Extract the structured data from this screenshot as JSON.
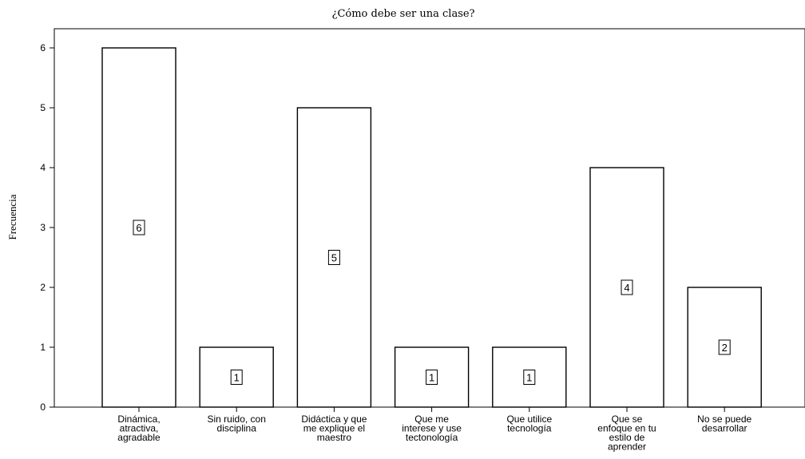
{
  "chart_data": {
    "type": "bar",
    "title": "¿Cómo debe ser una clase?",
    "xlabel": "",
    "ylabel": "Frecuencia",
    "categories": [
      [
        "Dinámica,",
        "atractiva,",
        "agradable"
      ],
      [
        "Sin ruido, con",
        "disciplina"
      ],
      [
        "Didáctica y que",
        "me explique el",
        "maestro"
      ],
      [
        "Que me",
        "interese y use",
        "tectonología"
      ],
      [
        "Que utilice",
        "tecnología"
      ],
      [
        "Que se",
        "enfoque en tu",
        "estilo de",
        "aprender"
      ],
      [
        "No se puede",
        "desarrollar"
      ]
    ],
    "values": [
      6,
      1,
      5,
      1,
      1,
      4,
      2
    ],
    "data_labels": [
      "6",
      "1",
      "5",
      "1",
      "1",
      "4",
      "2"
    ],
    "ylim": [
      0,
      6.5
    ],
    "yticks": [
      0,
      1,
      2,
      3,
      4,
      5,
      6
    ],
    "grid": false,
    "legend": "none",
    "bar_fill": "#ffffff",
    "bar_stroke": "#000000"
  }
}
